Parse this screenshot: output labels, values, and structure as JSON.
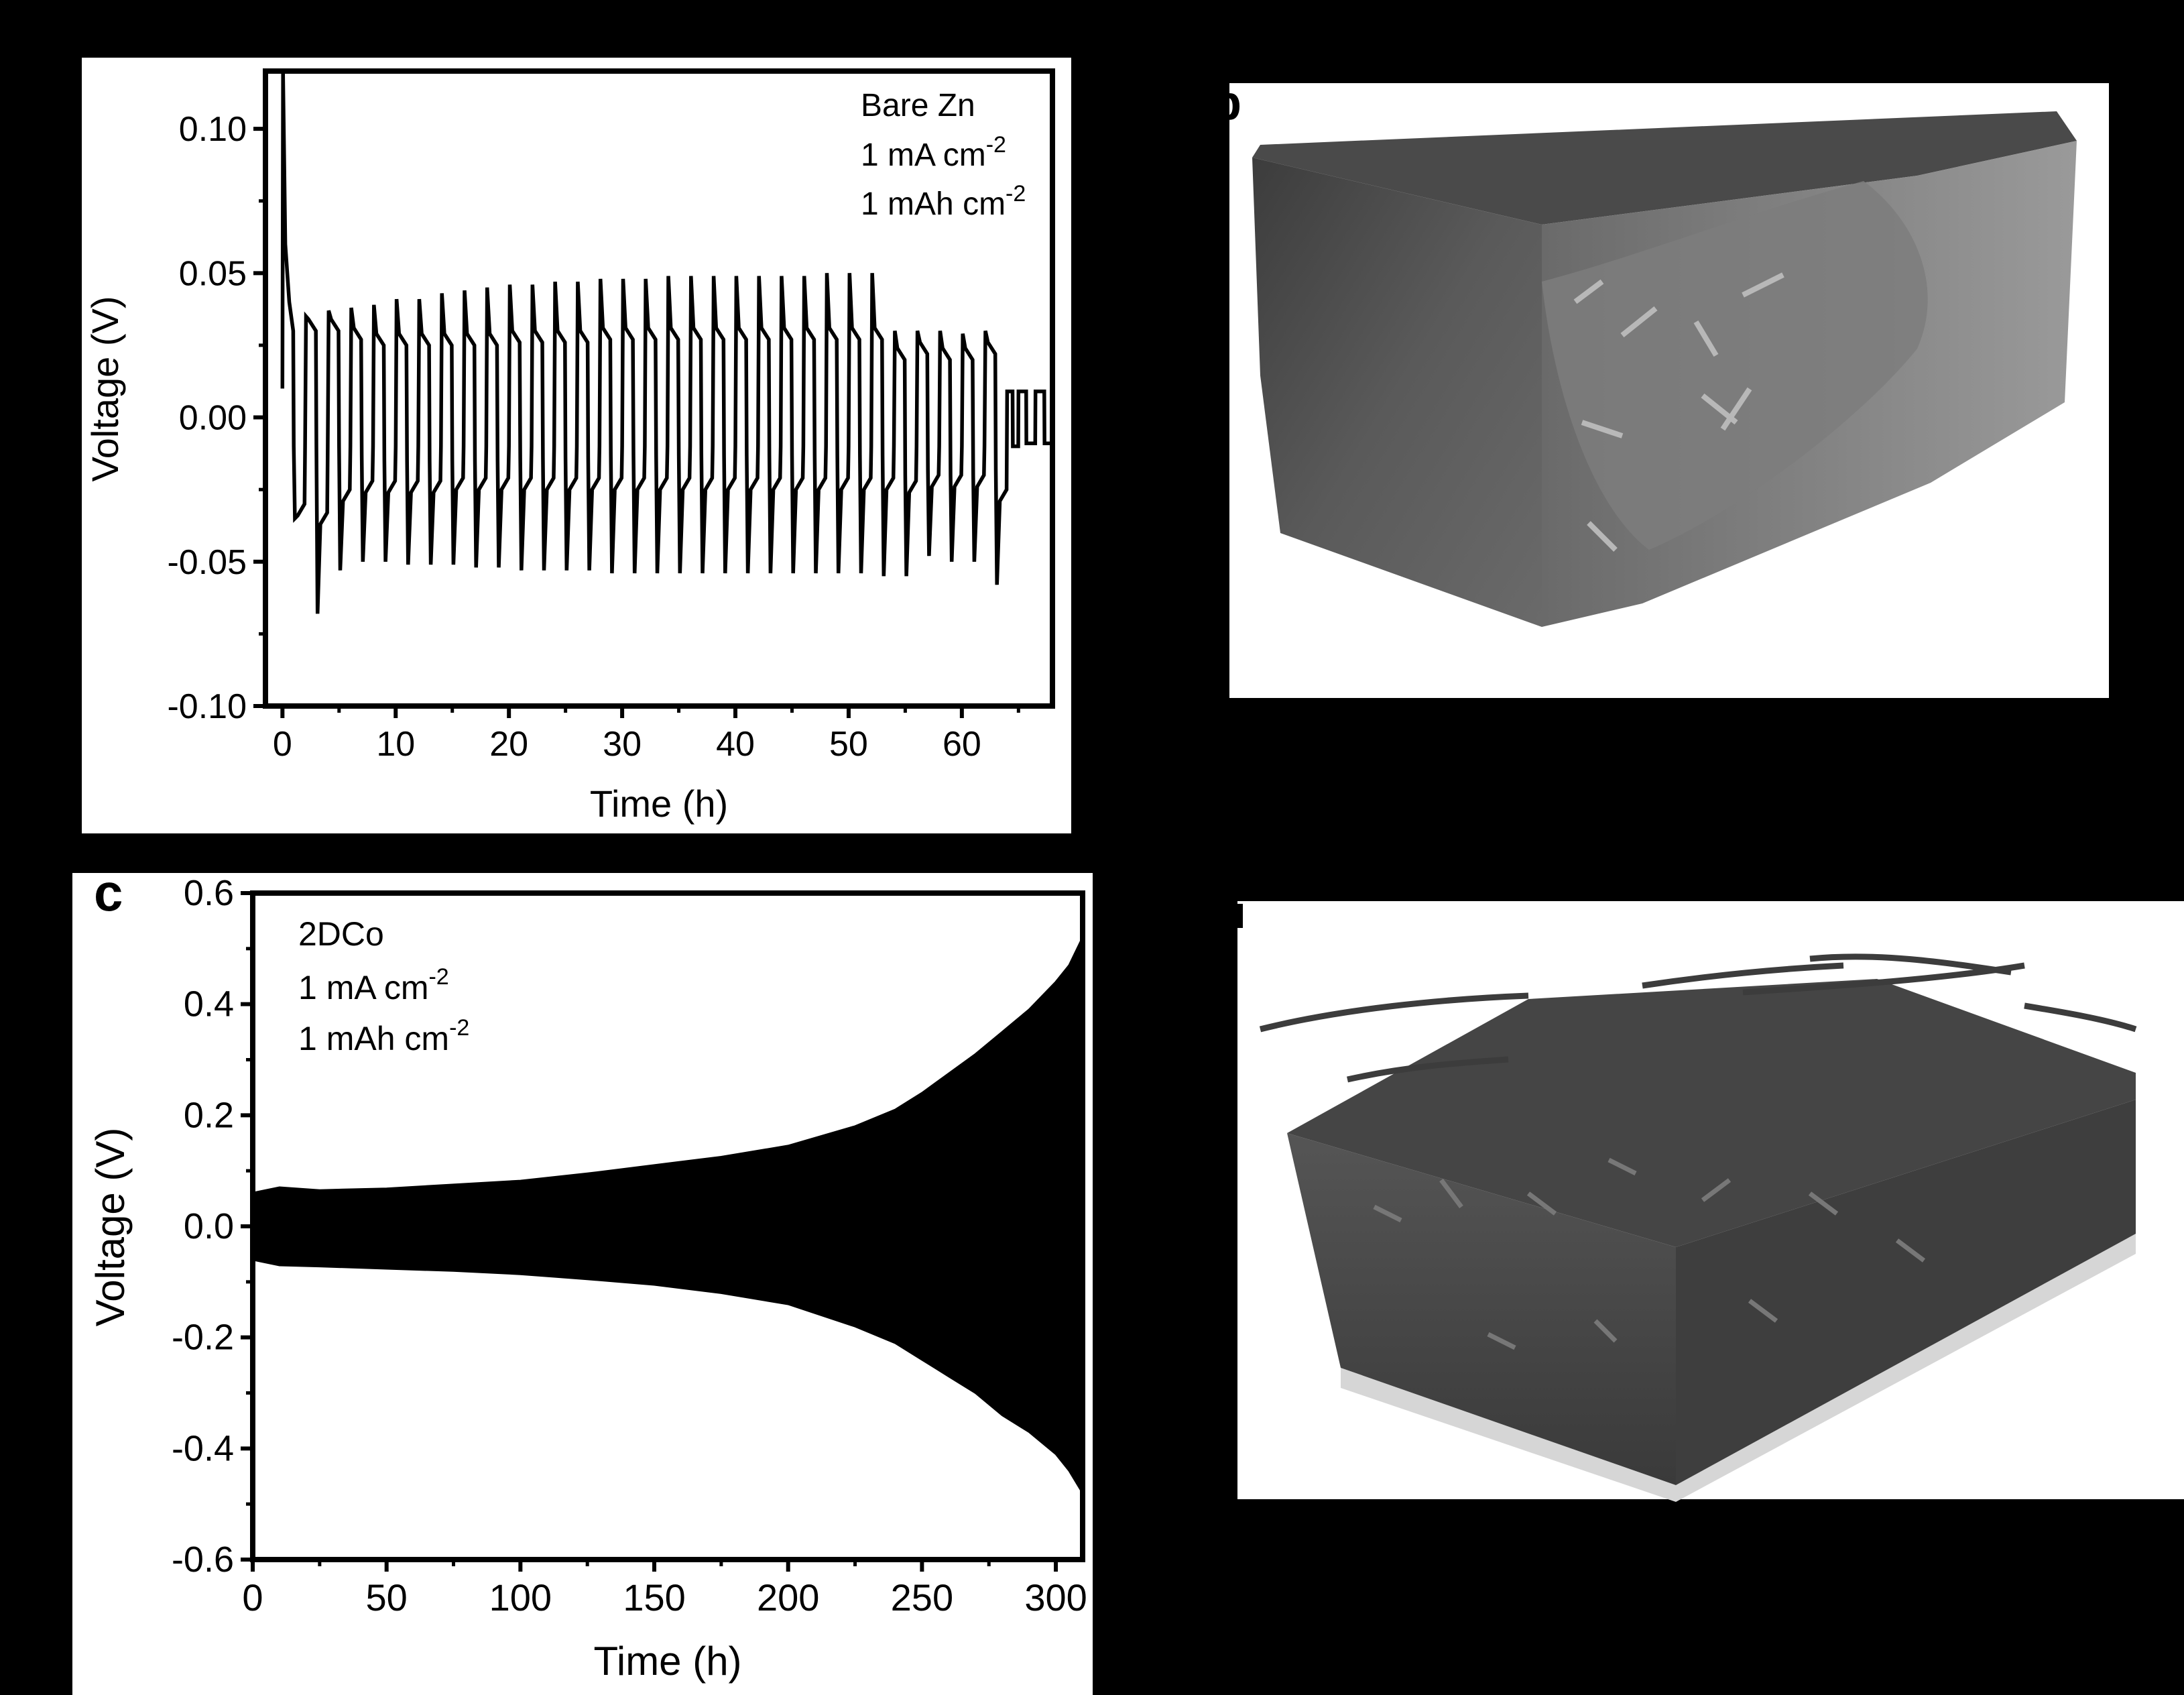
{
  "figure": {
    "panel_c_letter": "c",
    "panel_b_letter_fragment": "b",
    "panel_d_letter_fragment": ""
  },
  "chart_data": [
    {
      "type": "line",
      "panel": "a",
      "xlabel": "Time (h)",
      "ylabel": "Voltage (V)",
      "xlim": [
        -1.5,
        68
      ],
      "ylim": [
        -0.1,
        0.12
      ],
      "xticks": [
        0,
        10,
        20,
        30,
        40,
        50,
        60
      ],
      "xtick_labels": [
        "0",
        "10",
        "20",
        "30",
        "40",
        "50",
        "60"
      ],
      "yticks": [
        0.1,
        0.05,
        0.0,
        -0.05,
        -0.1
      ],
      "ytick_labels": [
        "0.10",
        "0.05",
        "0.00",
        "-0.05",
        "-0.10"
      ],
      "annotation": [
        "Bare Zn",
        "1 mA cm",
        "1 mAh cm"
      ],
      "annotation_sup": [
        "",
        "-2",
        "-2"
      ],
      "series": [
        {
          "cycle_period_h": 2,
          "cycles": [
            {
              "t": 0,
              "charge": 0.12,
              "plateau_charge": 0.03,
              "discharge": -0.035,
              "plateau_discharge": -0.03
            },
            {
              "t": 2,
              "charge": 0.035,
              "plateau_charge": 0.03,
              "discharge": -0.068,
              "plateau_discharge": -0.033
            },
            {
              "t": 4,
              "charge": 0.037,
              "plateau_charge": 0.03,
              "discharge": -0.053,
              "plateau_discharge": -0.025
            },
            {
              "t": 6,
              "charge": 0.038,
              "plateau_charge": 0.027,
              "discharge": -0.05,
              "plateau_discharge": -0.022
            },
            {
              "t": 8,
              "charge": 0.039,
              "plateau_charge": 0.025,
              "discharge": -0.05,
              "plateau_discharge": -0.022
            },
            {
              "t": 10,
              "charge": 0.041,
              "plateau_charge": 0.025,
              "discharge": -0.051,
              "plateau_discharge": -0.022
            },
            {
              "t": 12,
              "charge": 0.041,
              "plateau_charge": 0.025,
              "discharge": -0.051,
              "plateau_discharge": -0.022
            },
            {
              "t": 14,
              "charge": 0.043,
              "plateau_charge": 0.025,
              "discharge": -0.051,
              "plateau_discharge": -0.021
            },
            {
              "t": 16,
              "charge": 0.044,
              "plateau_charge": 0.025,
              "discharge": -0.052,
              "plateau_discharge": -0.021
            },
            {
              "t": 18,
              "charge": 0.045,
              "plateau_charge": 0.025,
              "discharge": -0.052,
              "plateau_discharge": -0.021
            },
            {
              "t": 20,
              "charge": 0.046,
              "plateau_charge": 0.026,
              "discharge": -0.053,
              "plateau_discharge": -0.021
            },
            {
              "t": 22,
              "charge": 0.046,
              "plateau_charge": 0.026,
              "discharge": -0.053,
              "plateau_discharge": -0.021
            },
            {
              "t": 24,
              "charge": 0.047,
              "plateau_charge": 0.026,
              "discharge": -0.053,
              "plateau_discharge": -0.021
            },
            {
              "t": 26,
              "charge": 0.047,
              "plateau_charge": 0.026,
              "discharge": -0.053,
              "plateau_discharge": -0.021
            },
            {
              "t": 28,
              "charge": 0.048,
              "plateau_charge": 0.027,
              "discharge": -0.054,
              "plateau_discharge": -0.021
            },
            {
              "t": 30,
              "charge": 0.048,
              "plateau_charge": 0.027,
              "discharge": -0.054,
              "plateau_discharge": -0.021
            },
            {
              "t": 32,
              "charge": 0.048,
              "plateau_charge": 0.027,
              "discharge": -0.054,
              "plateau_discharge": -0.021
            },
            {
              "t": 34,
              "charge": 0.049,
              "plateau_charge": 0.027,
              "discharge": -0.054,
              "plateau_discharge": -0.021
            },
            {
              "t": 36,
              "charge": 0.049,
              "plateau_charge": 0.027,
              "discharge": -0.054,
              "plateau_discharge": -0.021
            },
            {
              "t": 38,
              "charge": 0.049,
              "plateau_charge": 0.027,
              "discharge": -0.054,
              "plateau_discharge": -0.021
            },
            {
              "t": 40,
              "charge": 0.049,
              "plateau_charge": 0.027,
              "discharge": -0.054,
              "plateau_discharge": -0.021
            },
            {
              "t": 42,
              "charge": 0.049,
              "plateau_charge": 0.027,
              "discharge": -0.054,
              "plateau_discharge": -0.021
            },
            {
              "t": 44,
              "charge": 0.049,
              "plateau_charge": 0.027,
              "discharge": -0.054,
              "plateau_discharge": -0.021
            },
            {
              "t": 46,
              "charge": 0.049,
              "plateau_charge": 0.027,
              "discharge": -0.054,
              "plateau_discharge": -0.021
            },
            {
              "t": 48,
              "charge": 0.05,
              "plateau_charge": 0.027,
              "discharge": -0.054,
              "plateau_discharge": -0.021
            },
            {
              "t": 50,
              "charge": 0.05,
              "plateau_charge": 0.027,
              "discharge": -0.054,
              "plateau_discharge": -0.021
            },
            {
              "t": 52,
              "charge": 0.05,
              "plateau_charge": 0.027,
              "discharge": -0.055,
              "plateau_discharge": -0.021
            },
            {
              "t": 54,
              "charge": 0.03,
              "plateau_charge": 0.02,
              "discharge": -0.055,
              "plateau_discharge": -0.022
            },
            {
              "t": 56,
              "charge": 0.03,
              "plateau_charge": 0.022,
              "discharge": -0.048,
              "plateau_discharge": -0.02
            },
            {
              "t": 58,
              "charge": 0.03,
              "plateau_charge": 0.02,
              "discharge": -0.05,
              "plateau_discharge": -0.02
            },
            {
              "t": 60,
              "charge": 0.029,
              "plateau_charge": 0.02,
              "discharge": -0.05,
              "plateau_discharge": -0.02
            },
            {
              "t": 62,
              "charge": 0.03,
              "plateau_charge": 0.022,
              "discharge": -0.058,
              "plateau_discharge": -0.025
            }
          ],
          "tail": [
            [
              64,
              0.009
            ],
            [
              64.5,
              -0.01
            ],
            [
              65,
              0.009
            ],
            [
              65.7,
              -0.009
            ],
            [
              66.5,
              0.009
            ],
            [
              67.3,
              -0.009
            ],
            [
              68,
              -0.01
            ]
          ]
        }
      ]
    },
    {
      "type": "area",
      "panel": "c",
      "xlabel": "Time (h)",
      "ylabel": "Voltage (V)",
      "xlim": [
        0,
        310
      ],
      "ylim": [
        -0.6,
        0.6
      ],
      "xticks": [
        0,
        50,
        100,
        150,
        200,
        250,
        300
      ],
      "xtick_labels": [
        "0",
        "50",
        "100",
        "150",
        "200",
        "250",
        "300"
      ],
      "yticks": [
        0.6,
        0.4,
        0.2,
        0.0,
        -0.2,
        -0.4,
        -0.6
      ],
      "ytick_labels": [
        "0.6",
        "0.4",
        "0.2",
        "0.0",
        "-0.2",
        "-0.4",
        "-0.6"
      ],
      "annotation": [
        "2DCo",
        "1 mA cm",
        "1 mAh cm"
      ],
      "annotation_sup": [
        "",
        "-2",
        "-2"
      ],
      "series": [
        {
          "x": [
            0,
            10,
            25,
            50,
            75,
            100,
            125,
            150,
            175,
            200,
            225,
            240,
            250,
            260,
            270,
            280,
            290,
            300,
            305,
            310
          ],
          "upper": [
            0.06,
            0.07,
            0.065,
            0.068,
            0.075,
            0.082,
            0.095,
            0.11,
            0.125,
            0.145,
            0.18,
            0.21,
            0.24,
            0.275,
            0.31,
            0.35,
            0.39,
            0.44,
            0.47,
            0.52
          ],
          "lower": [
            -0.06,
            -0.07,
            -0.072,
            -0.076,
            -0.08,
            -0.086,
            -0.095,
            -0.105,
            -0.12,
            -0.14,
            -0.18,
            -0.21,
            -0.24,
            -0.27,
            -0.3,
            -0.34,
            -0.37,
            -0.41,
            -0.44,
            -0.48
          ]
        }
      ]
    }
  ]
}
